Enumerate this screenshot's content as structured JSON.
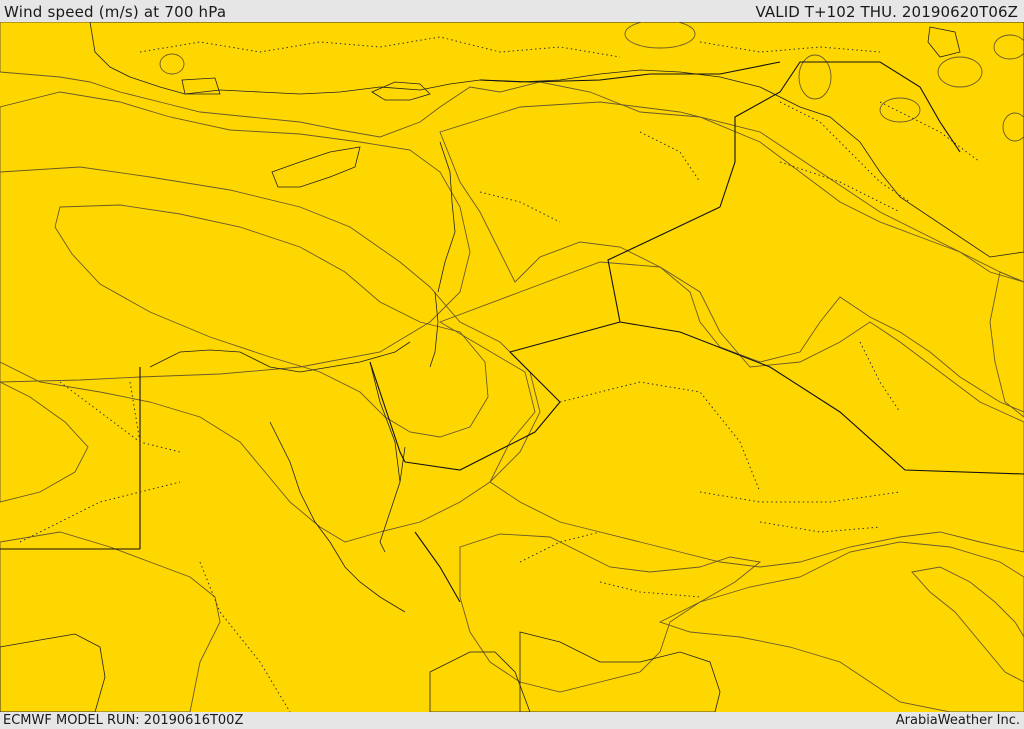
{
  "header": {
    "title": "Wind speed (m/s) at 700 hPa",
    "valid": "VALID T+102 THU. 20190620T06Z"
  },
  "footer": {
    "model_run": "ECMWF MODEL RUN: 20190616T00Z",
    "credit": "ArabiaWeather Inc."
  },
  "palette": {
    "land_outside": "#ffe0b0",
    "sea_white": "#ffffff",
    "band_light": "#ffff00",
    "band_mid": "#ffd700",
    "band_strong": "#ffc000",
    "band_max": "#ffa000"
  }
}
